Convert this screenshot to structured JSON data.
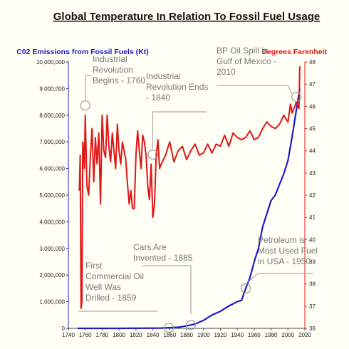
{
  "chart_data": {
    "type": "line",
    "title": "Global Temperature In Relation To Fossil Fuel Usage",
    "left_axis_label": "C02 Emissions from Fossil Fuels (Kt)",
    "right_axis_label": "Degrees Farenheit",
    "x_range": [
      1740,
      2020
    ],
    "x_ticks": [
      1740,
      1760,
      1780,
      1800,
      1820,
      1840,
      1860,
      1880,
      1900,
      1920,
      1940,
      1960,
      1980,
      2000,
      2020
    ],
    "y_left_range": [
      0,
      10000000
    ],
    "y_left_ticks": [
      "0",
      "1,000,000",
      "2,000,000",
      "3,000,000",
      "4,000,000",
      "5,000,000",
      "6,000,000",
      "7,000,000",
      "8,000,000",
      "9,000,000",
      "10,000,000"
    ],
    "y_right_range": [
      36,
      48
    ],
    "y_right_ticks": [
      36,
      37,
      38,
      39,
      40,
      41,
      42,
      43,
      44,
      45,
      46,
      47,
      48
    ],
    "grid": false,
    "series": [
      {
        "name": "C02 Emissions from Fossil Fuels (Kt)",
        "axis": "left",
        "color": "#1c1cc6",
        "x": [
          1751,
          1800,
          1850,
          1870,
          1880,
          1890,
          1900,
          1910,
          1920,
          1930,
          1940,
          1945,
          1950,
          1955,
          1960,
          1965,
          1970,
          1975,
          1980,
          1985,
          1990,
          1995,
          2000,
          2005,
          2010,
          2014
        ],
        "values": [
          0,
          0,
          10000,
          40000,
          90000,
          160000,
          300000,
          500000,
          640000,
          840000,
          1000000,
          1050000,
          1500000,
          1900000,
          2500000,
          3000000,
          3800000,
          4300000,
          4800000,
          5000000,
          5400000,
          5800000,
          6300000,
          7200000,
          8200000,
          9000000
        ]
      },
      {
        "name": "Degrees Farenheit",
        "axis": "right",
        "color": "#e01616",
        "x": [
          1753,
          1754,
          1755,
          1756,
          1757,
          1758,
          1759,
          1760,
          1762,
          1764,
          1766,
          1768,
          1770,
          1772,
          1774,
          1776,
          1778,
          1780,
          1782,
          1784,
          1786,
          1788,
          1790,
          1792,
          1794,
          1796,
          1798,
          1800,
          1802,
          1804,
          1806,
          1808,
          1810,
          1812,
          1814,
          1816,
          1818,
          1820,
          1822,
          1824,
          1826,
          1828,
          1830,
          1832,
          1834,
          1836,
          1838,
          1840,
          1842,
          1844,
          1846,
          1848,
          1850,
          1855,
          1860,
          1865,
          1870,
          1875,
          1880,
          1885,
          1890,
          1895,
          1900,
          1905,
          1910,
          1915,
          1920,
          1925,
          1930,
          1935,
          1940,
          1945,
          1950,
          1955,
          1960,
          1965,
          1970,
          1975,
          1980,
          1985,
          1990,
          1995,
          2000,
          2003,
          2005,
          2008,
          2010,
          2012,
          2013,
          2014
        ],
        "values": [
          42.2,
          43.8,
          36.9,
          37.2,
          44.4,
          44.0,
          43.2,
          45.6,
          42.4,
          42.0,
          43.7,
          45.0,
          42.6,
          44.6,
          43.4,
          44.8,
          41.6,
          45.6,
          44.0,
          43.7,
          45.6,
          44.2,
          43.5,
          44.8,
          44.0,
          43.2,
          45.2,
          44.0,
          43.4,
          44.4,
          44.0,
          43.6,
          42.5,
          41.6,
          42.2,
          41.4,
          41.4,
          43.8,
          44.9,
          44.0,
          43.2,
          44.7,
          44.4,
          43.8,
          42.4,
          41.8,
          43.4,
          41.0,
          41.6,
          43.8,
          44.5,
          43.2,
          43.4,
          43.8,
          44.4,
          43.5,
          44.0,
          44.2,
          43.6,
          44.0,
          44.3,
          43.8,
          43.9,
          44.3,
          43.9,
          44.3,
          44.2,
          44.7,
          44.2,
          44.8,
          44.6,
          44.5,
          44.6,
          44.9,
          44.5,
          44.6,
          45.0,
          45.3,
          45.1,
          45.0,
          45.2,
          45.6,
          45.3,
          46.1,
          45.7,
          46.0,
          46.2,
          46.0,
          45.9,
          47.8
        ]
      }
    ],
    "annotations": [
      {
        "lines": [
          "Industrial",
          "Revolution",
          "Begins - 1760"
        ],
        "year": 1760
      },
      {
        "lines": [
          "Industrial",
          "Revolution Ends",
          "- 1840"
        ],
        "year": 1840
      },
      {
        "lines": [
          "First",
          "Commercial Oil",
          "Well Was",
          "Drilled - 1859"
        ],
        "year": 1859
      },
      {
        "lines": [
          "Cars Are",
          "Invented - 1885"
        ],
        "year": 1885
      },
      {
        "lines": [
          "Petroleum is",
          "Most Used Fuel",
          "in USA - 1950"
        ],
        "year": 1950
      },
      {
        "lines": [
          "BP Oil Spill in",
          "Gulf of Mexico -",
          "2010"
        ],
        "year": 2010
      }
    ]
  }
}
